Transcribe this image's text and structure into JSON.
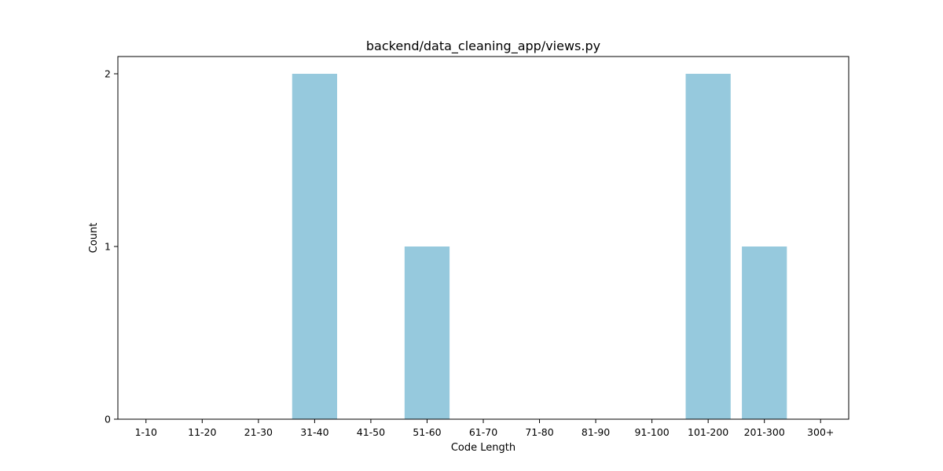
{
  "chart_data": {
    "type": "bar",
    "title": "backend/data_cleaning_app/views.py",
    "xlabel": "Code Length",
    "ylabel": "Count",
    "categories": [
      "1-10",
      "11-20",
      "21-30",
      "31-40",
      "41-50",
      "51-60",
      "61-70",
      "71-80",
      "81-90",
      "91-100",
      "101-200",
      "201-300",
      "300+"
    ],
    "values": [
      0,
      0,
      0,
      2,
      0,
      1,
      0,
      0,
      0,
      0,
      2,
      1,
      0
    ],
    "ylim": [
      0,
      2.1
    ],
    "yticks": [
      0,
      1,
      2
    ],
    "bar_color": "#96c9dd",
    "grid": false,
    "legend": "none"
  }
}
